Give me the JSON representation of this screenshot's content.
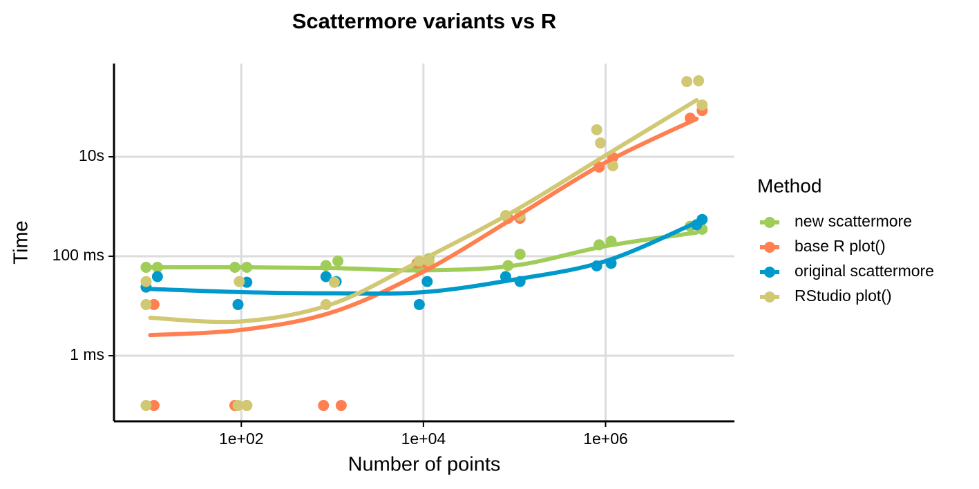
{
  "chart_data": {
    "type": "scatter",
    "title": "Scattermore variants vs R",
    "x_label": "Number of points",
    "y_label": "Time",
    "legend_title": "Method",
    "xlog": true,
    "ylog": true,
    "grid": true,
    "legend_position": "right",
    "xlim": [
      4,
      26000000
    ],
    "ylim": [
      4.8e-05,
      750
    ],
    "xticks": [
      {
        "value": 100,
        "label": "1e+02"
      },
      {
        "value": 10000,
        "label": "1e+04"
      },
      {
        "value": 1000000,
        "label": "1e+06"
      }
    ],
    "yticks": [
      {
        "value": 0.001,
        "label": "1 ms"
      },
      {
        "value": 0.1,
        "label": "100 ms"
      },
      {
        "value": 10,
        "label": "10s"
      }
    ],
    "series": [
      {
        "name": "new scattermore",
        "color": "#a0cc58",
        "x": [
          9,
          12,
          85,
          115,
          850,
          1150,
          8500,
          11500,
          85000,
          115000,
          850000,
          1150000,
          8500000,
          11500000
        ],
        "values": [
          0.06,
          0.06,
          0.06,
          0.06,
          0.065,
          0.08,
          0.06,
          0.09,
          0.065,
          0.11,
          0.17,
          0.2,
          0.4,
          0.35
        ],
        "fit_x": [
          10,
          100,
          1000,
          10000,
          100000,
          1000000,
          10000000
        ],
        "fit_values": [
          0.06,
          0.06,
          0.058,
          0.052,
          0.065,
          0.16,
          0.3
        ]
      },
      {
        "name": "base R plot()",
        "color": "#ff7f50",
        "x": [
          11,
          11,
          85,
          115,
          800,
          1250,
          8500,
          11000,
          85000,
          115000,
          850000,
          1200000,
          8500000,
          11500000
        ],
        "values": [
          0.0107,
          0.0001,
          0.0001,
          0.0001,
          0.0001,
          0.0001,
          0.072,
          0.068,
          0.58,
          0.58,
          6.2,
          9.7,
          60,
          85
        ],
        "fit_x": [
          10,
          100,
          1000,
          10000,
          100000,
          1000000,
          10000000
        ],
        "fit_values": [
          0.0026,
          0.0033,
          0.0075,
          0.049,
          0.6,
          7.7,
          58
        ]
      },
      {
        "name": "original scattermore",
        "color": "#0099cc",
        "x": [
          9,
          12,
          92,
          115,
          850,
          1100,
          9000,
          11000,
          80000,
          115000,
          800000,
          1150000,
          10000000,
          11500000
        ],
        "values": [
          0.024,
          0.039,
          0.0107,
          0.03,
          0.039,
          0.031,
          0.0107,
          0.031,
          0.039,
          0.031,
          0.064,
          0.072,
          0.43,
          0.55
        ],
        "fit_x": [
          10,
          100,
          1000,
          10000,
          100000,
          1000000,
          10000000
        ],
        "fit_values": [
          0.022,
          0.019,
          0.018,
          0.019,
          0.034,
          0.08,
          0.48
        ]
      },
      {
        "name": "RStudio plot()",
        "color": "#d0c873",
        "x": [
          9,
          9,
          9,
          92,
          115,
          95,
          850,
          1050,
          9000,
          11500,
          80000,
          115000,
          800000,
          880000,
          1200000,
          7800000,
          10500000,
          11500000
        ],
        "values": [
          0.0001,
          0.0107,
          0.031,
          0.0001,
          0.0001,
          0.031,
          0.0107,
          0.03,
          0.08,
          0.08,
          0.66,
          0.66,
          35,
          19,
          6.6,
          325,
          338,
          110
        ],
        "fit_x": [
          10,
          100,
          1000,
          10000,
          100000,
          1000000,
          10000000
        ],
        "fit_values": [
          0.0058,
          0.0049,
          0.011,
          0.088,
          0.82,
          10.7,
          138
        ]
      }
    ]
  }
}
